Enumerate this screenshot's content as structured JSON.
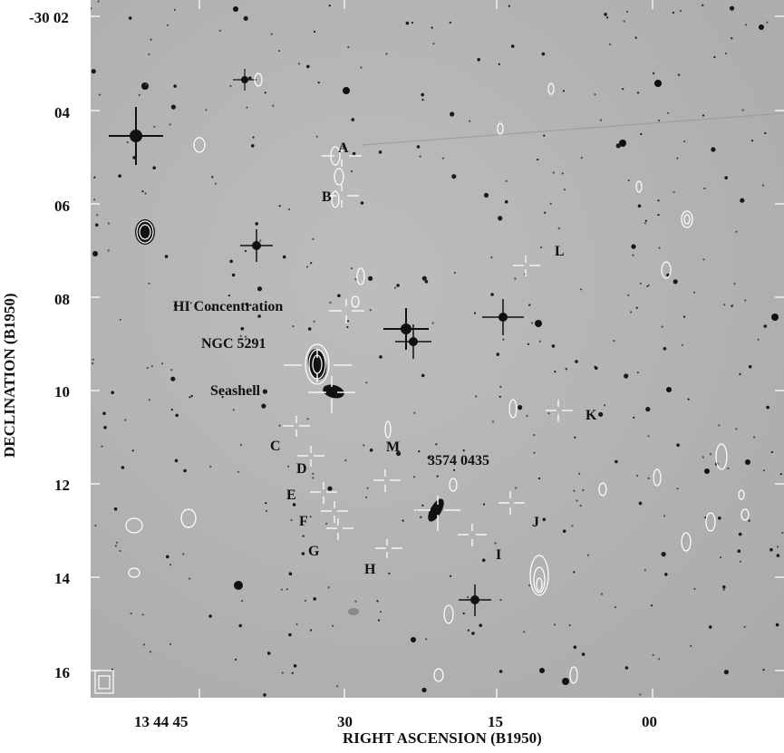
{
  "figure": {
    "axes": {
      "ylabel": "DECLINATION (B1950)",
      "xlabel": "RIGHT ASCENSION (B1950)",
      "yticks": [
        "-30 02",
        "04",
        "06",
        "08",
        "10",
        "12",
        "14",
        "16"
      ],
      "xticks": [
        "13 44 45",
        "30",
        "15",
        "00"
      ]
    },
    "object_labels": {
      "hi": "HI Concentration",
      "ngc": "NGC 5291",
      "seashell": "Seashell",
      "gal": "3574 0435",
      "A": "A",
      "B": "B",
      "C": "C",
      "D": "D",
      "E": "E",
      "F": "F",
      "G": "G",
      "H": "H",
      "I": "I",
      "J": "J",
      "K": "K",
      "L": "L",
      "M": "M"
    }
  }
}
